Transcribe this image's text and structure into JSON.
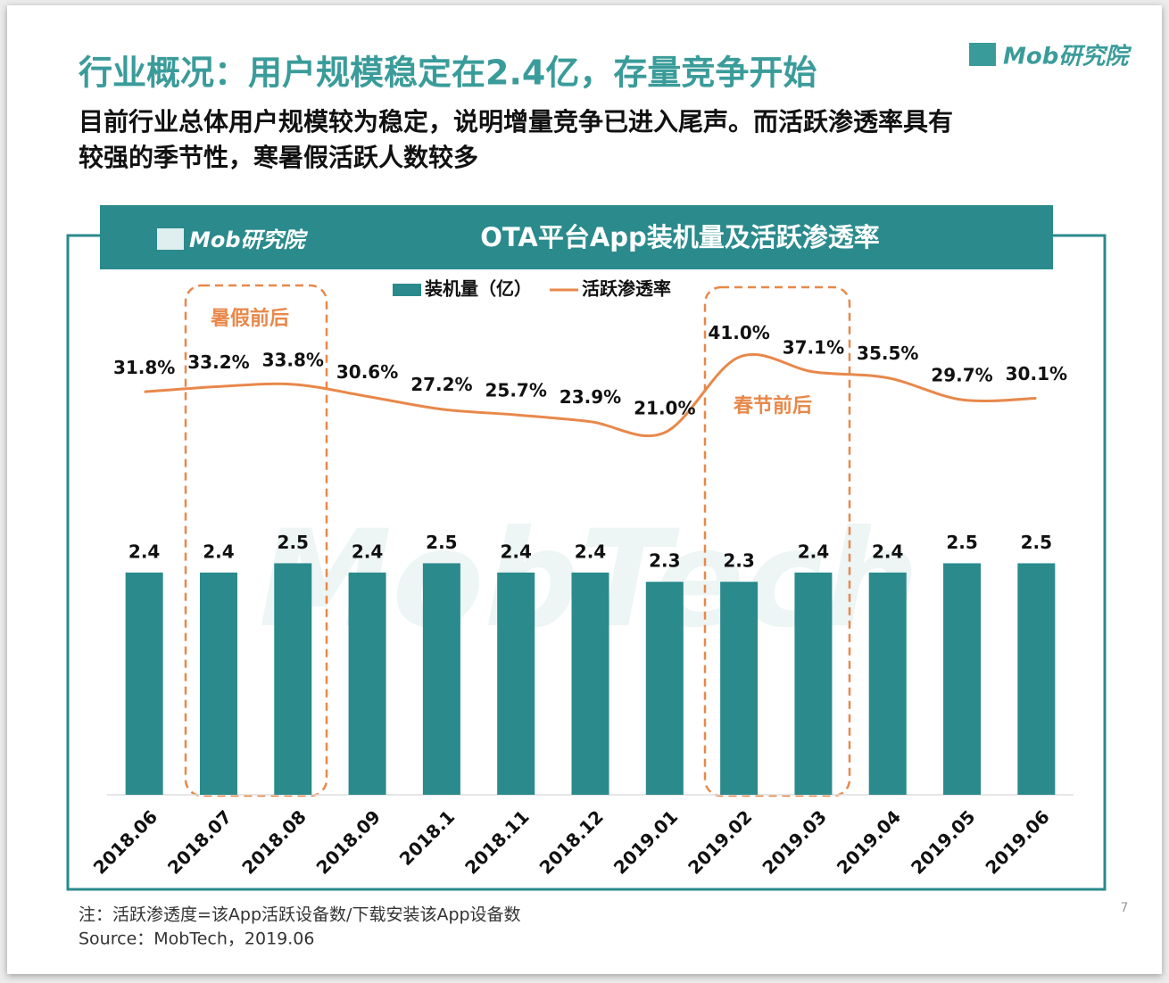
{
  "header": {
    "title": "行业概况：用户规模稳定在2.4亿，存量竞争开始",
    "subtitle": [
      "目前行业总体用户规模较为稳定，说明增量竞争已进入尾声。而活跃渗透率具有",
      "较强的季节性，寒暑假活跃人数较多"
    ],
    "logo": "Mob研究院",
    "chart_logo": "Mob研究院"
  },
  "chart_data": {
    "type": "combo",
    "title": "OTA平台App装机量及活跃渗透率",
    "categories": [
      "2018.06",
      "2018.07",
      "2018.08",
      "2018.09",
      "2018.1",
      "2018.11",
      "2018.12",
      "2019.01",
      "2019.02",
      "2019.03",
      "2019.04",
      "2019.05",
      "2019.06"
    ],
    "series": [
      {
        "name": "装机量（亿）",
        "type": "bar",
        "color": "#2a8a8c",
        "values": [
          2.4,
          2.4,
          2.5,
          2.4,
          2.5,
          2.4,
          2.4,
          2.3,
          2.3,
          2.4,
          2.4,
          2.5,
          2.5
        ]
      },
      {
        "name": "活跃渗透率",
        "type": "line",
        "axis": "y2",
        "color": "#e8884a",
        "values": [
          31.8,
          33.2,
          33.8,
          30.6,
          27.2,
          25.7,
          23.9,
          21.0,
          41.0,
          37.1,
          35.5,
          29.7,
          30.1
        ],
        "value_labels": [
          "31.8%",
          "33.2%",
          "33.8%",
          "30.6%",
          "27.2%",
          "25.7%",
          "23.9%",
          "21.0%",
          "41.0%",
          "37.1%",
          "35.5%",
          "29.7%",
          "30.1%"
        ]
      }
    ],
    "ylim": [
      0,
      5.5
    ],
    "y2lim": [
      -75,
      60
    ],
    "annotations": [
      "暑假前后",
      "春节前后"
    ],
    "watermark": "MobTech"
  },
  "footer": {
    "note": "注：活跃渗透度=该App活跃设备数/下载安装该App设备数",
    "source": "Source：MobTech，2019.06",
    "page": "7"
  }
}
